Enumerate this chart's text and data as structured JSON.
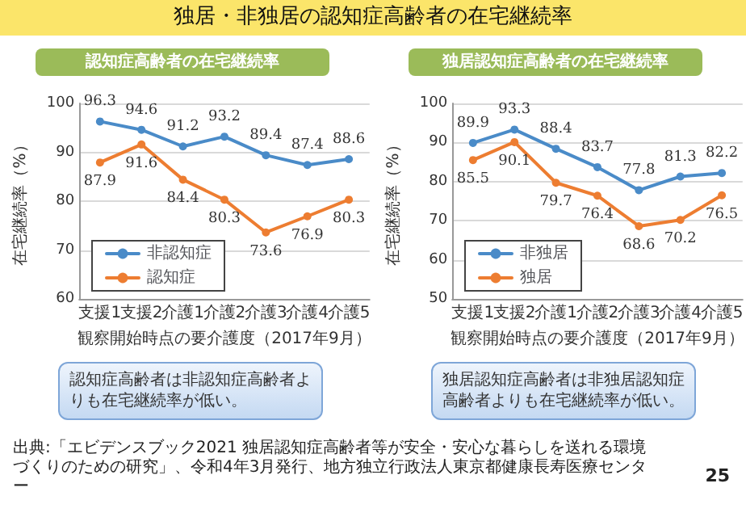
{
  "chart_data": [
    {
      "type": "other",
      "title": "独居・非独居の認知症高齢者の在宅継続率",
      "annotations": [
        "出典:「エビデンスブック2021 独居認知症高齢者等が安全・安心な暮らしを送れる環境づくりのための研究」、令和4年3月発行、地方独立行政法人東京都健康長寿医療センター",
        "25"
      ]
    },
    {
      "type": "line",
      "title": "認知症高齢者の在宅継続率",
      "xlabel": "観察開始時点の要介護度（2017年9月）",
      "ylabel": "在宅継続率（%）",
      "categories": [
        "支援1",
        "支援2",
        "介護1",
        "介護2",
        "介護3",
        "介護4",
        "介護5"
      ],
      "series": [
        {
          "name": "非認知症",
          "color": "#4a8bc8",
          "values": [
            96.3,
            94.6,
            91.2,
            93.2,
            89.4,
            87.4,
            88.6
          ]
        },
        {
          "name": "認知症",
          "color": "#ed7d31",
          "values": [
            87.9,
            91.6,
            84.4,
            80.3,
            73.6,
            76.9,
            80.3
          ]
        }
      ],
      "ylim": [
        60,
        100
      ],
      "yticks": [
        60,
        70,
        80,
        90,
        100
      ],
      "grid": "y",
      "legend": "bottom left",
      "marker": "circle",
      "data_labels": true,
      "annotations": [
        "認知症高齢者は非認知症高齢者よりも在宅継続率が低い。"
      ]
    },
    {
      "type": "line",
      "title": "独居認知症高齢者の在宅継続率",
      "xlabel": "観察開始時点の要介護度（2017年9月）",
      "ylabel": "在宅継続率（%）",
      "categories": [
        "支援1",
        "支援2",
        "介護1",
        "介護2",
        "介護3",
        "介護4",
        "介護5"
      ],
      "series": [
        {
          "name": "非独居",
          "color": "#4a8bc8",
          "values": [
            89.9,
            93.3,
            88.4,
            83.7,
            77.8,
            81.3,
            82.2
          ]
        },
        {
          "name": "独居",
          "color": "#ed7d31",
          "values": [
            85.5,
            90.1,
            79.7,
            76.4,
            68.6,
            70.2,
            76.5
          ]
        }
      ],
      "ylim": [
        50,
        100
      ],
      "yticks": [
        50,
        60,
        70,
        80,
        90,
        100
      ],
      "grid": "y",
      "legend": "bottom left",
      "marker": "circle",
      "data_labels": true,
      "annotations": [
        "独居認知症高齢者は非独居認知症高齢者よりも在宅継続率が低い。"
      ]
    }
  ]
}
